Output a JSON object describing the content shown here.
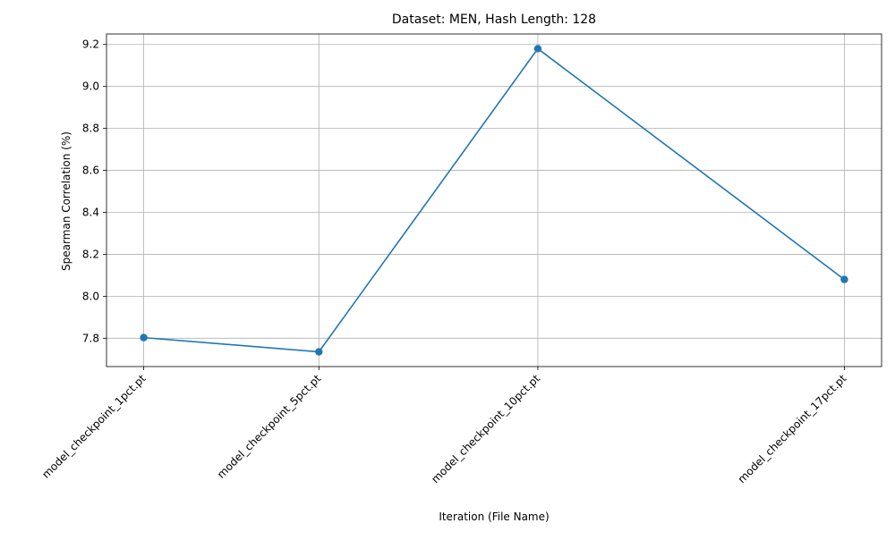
{
  "chart_data": {
    "type": "line",
    "title": "Dataset: MEN, Hash Length: 128",
    "xlabel": "Iteration (File Name)",
    "ylabel": "Spearman Correlation (%)",
    "grid": true,
    "ylim": [
      7.665,
      9.25
    ],
    "yticks": [
      "7.8",
      "8.0",
      "8.2",
      "8.4",
      "8.6",
      "8.8",
      "9.0",
      "9.2"
    ],
    "x": [
      1,
      5,
      10,
      17
    ],
    "xlim": [
      0.15,
      17.85
    ],
    "categories": [
      "model_checkpoint_1pct.pt",
      "model_checkpoint_5pct.pt",
      "model_checkpoint_10pct.pt",
      "model_checkpoint_17pct.pt"
    ],
    "series": [
      {
        "color": "#1f77b4",
        "marker": "circle",
        "values": [
          7.803,
          7.735,
          9.18,
          8.08
        ]
      }
    ]
  }
}
